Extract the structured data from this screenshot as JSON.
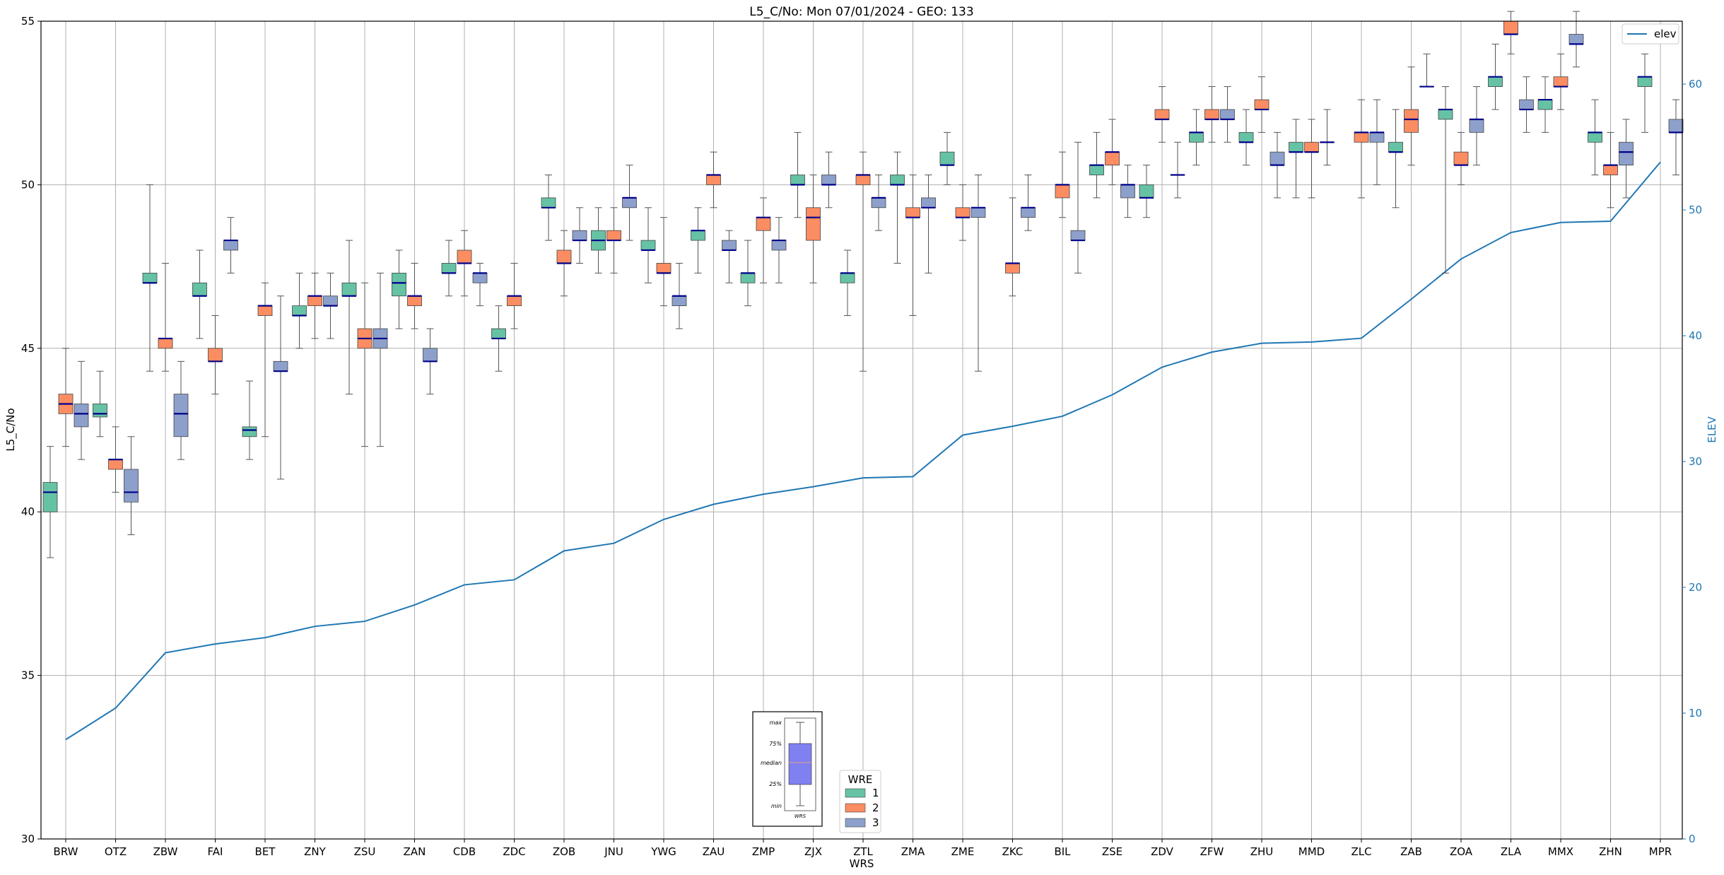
{
  "chart_data": {
    "type": "box",
    "title": "L5_C/No: Mon 07/01/2024 - GEO: 133",
    "xlabel": "WRS",
    "ylabel": "L5_C/No",
    "y2label": "ELEV",
    "ylim": [
      30,
      55
    ],
    "y2lim": [
      0,
      65
    ],
    "yticks": [
      30,
      35,
      40,
      45,
      50,
      55
    ],
    "y2ticks": [
      0,
      10,
      20,
      30,
      40,
      50,
      60
    ],
    "grid": true,
    "categories": [
      "BRW",
      "OTZ",
      "ZBW",
      "FAI",
      "BET",
      "ZNY",
      "ZSU",
      "ZAN",
      "CDB",
      "ZDC",
      "ZOB",
      "JNU",
      "YWG",
      "ZAU",
      "ZMP",
      "ZJX",
      "ZTL",
      "ZMA",
      "ZME",
      "ZKC",
      "BIL",
      "ZSE",
      "ZDV",
      "ZFW",
      "ZHU",
      "MMD",
      "ZLC",
      "ZAB",
      "ZOA",
      "ZLA",
      "MMX",
      "ZHN",
      "MPR"
    ],
    "box_legend": {
      "title": "WRE",
      "location": "lower-center",
      "entries": [
        {
          "name": "1",
          "color": "#66c2a5"
        },
        {
          "name": "2",
          "color": "#fc8d62"
        },
        {
          "name": "3",
          "color": "#8da0cb"
        }
      ]
    },
    "line_legend": {
      "name": "elev",
      "color": "#1f77b4",
      "location": "top-right"
    },
    "inset_key": {
      "labels": [
        "max",
        "75%",
        "median",
        "25%",
        "min"
      ],
      "xlabel": "WRS"
    },
    "series": [
      {
        "name": "1",
        "color": "#66c2a5",
        "boxes": [
          [
            38.6,
            40.0,
            40.6,
            40.9,
            42.0
          ],
          [
            42.3,
            42.9,
            43.0,
            43.3,
            44.3
          ],
          [
            44.3,
            47.0,
            47.0,
            47.3,
            50.0
          ],
          [
            45.3,
            46.6,
            46.6,
            47.0,
            48.0
          ],
          [
            41.6,
            42.3,
            42.5,
            42.6,
            44.0
          ],
          [
            45.0,
            46.0,
            46.0,
            46.3,
            47.3
          ],
          [
            43.6,
            46.6,
            46.6,
            47.0,
            48.3
          ],
          [
            45.6,
            46.6,
            47.0,
            47.3,
            48.0
          ],
          [
            46.6,
            47.3,
            47.3,
            47.6,
            48.3
          ],
          [
            44.3,
            45.3,
            45.3,
            45.6,
            46.3
          ],
          [
            48.3,
            49.3,
            49.3,
            49.6,
            50.3
          ],
          [
            47.3,
            48.0,
            48.3,
            48.6,
            49.3
          ],
          [
            47.0,
            48.0,
            48.0,
            48.3,
            49.3
          ],
          [
            47.3,
            48.3,
            48.6,
            48.6,
            49.3
          ],
          [
            46.3,
            47.0,
            47.3,
            47.3,
            48.3
          ],
          [
            49.0,
            50.0,
            50.0,
            50.3,
            51.6
          ],
          [
            46.0,
            47.0,
            47.3,
            47.3,
            48.0
          ],
          [
            47.6,
            50.0,
            50.0,
            50.3,
            51.0
          ],
          [
            50.0,
            50.6,
            50.6,
            51.0,
            51.6
          ],
          null,
          null,
          [
            49.6,
            50.3,
            50.6,
            50.6,
            51.6
          ],
          [
            49.0,
            49.6,
            49.6,
            50.0,
            50.6
          ],
          [
            50.6,
            51.3,
            51.6,
            51.6,
            52.3
          ],
          [
            50.6,
            51.3,
            51.3,
            51.6,
            52.3
          ],
          [
            49.6,
            51.0,
            51.0,
            51.3,
            52.0
          ],
          null,
          [
            49.3,
            51.0,
            51.0,
            51.3,
            52.3
          ],
          [
            47.3,
            52.0,
            52.3,
            52.3,
            53.0
          ],
          [
            52.3,
            53.0,
            53.3,
            53.3,
            54.3
          ],
          [
            51.6,
            52.3,
            52.6,
            52.6,
            53.3
          ],
          [
            50.3,
            51.3,
            51.6,
            51.6,
            52.6
          ],
          [
            51.6,
            53.0,
            53.3,
            53.3,
            54.0
          ]
        ]
      },
      {
        "name": "2",
        "color": "#fc8d62",
        "boxes": [
          [
            42.0,
            43.0,
            43.3,
            43.6,
            45.0
          ],
          [
            40.6,
            41.3,
            41.6,
            41.6,
            42.6
          ],
          [
            44.3,
            45.0,
            45.3,
            45.3,
            47.6
          ],
          [
            43.6,
            44.6,
            44.6,
            45.0,
            46.0
          ],
          [
            42.3,
            46.0,
            46.3,
            46.3,
            47.0
          ],
          [
            45.3,
            46.3,
            46.6,
            46.6,
            47.3
          ],
          [
            42.0,
            45.0,
            45.3,
            45.6,
            47.0
          ],
          [
            45.6,
            46.3,
            46.6,
            46.6,
            47.6
          ],
          [
            46.6,
            47.6,
            47.6,
            48.0,
            48.6
          ],
          [
            45.6,
            46.3,
            46.6,
            46.6,
            47.6
          ],
          [
            46.6,
            47.6,
            47.6,
            48.0,
            48.6
          ],
          [
            47.3,
            48.3,
            48.3,
            48.6,
            49.3
          ],
          [
            46.3,
            47.3,
            47.3,
            47.6,
            49.0
          ],
          [
            49.3,
            50.0,
            50.3,
            50.3,
            51.0
          ],
          [
            47.0,
            48.6,
            49.0,
            49.0,
            49.6
          ],
          [
            47.0,
            48.3,
            49.0,
            49.3,
            50.3
          ],
          [
            44.3,
            50.0,
            50.3,
            50.3,
            51.0
          ],
          [
            46.0,
            49.0,
            49.0,
            49.3,
            50.3
          ],
          [
            48.3,
            49.0,
            49.0,
            49.3,
            50.0
          ],
          [
            46.6,
            47.3,
            47.6,
            47.6,
            49.6
          ],
          [
            49.0,
            49.6,
            50.0,
            50.0,
            51.0
          ],
          [
            50.0,
            50.6,
            51.0,
            51.0,
            52.0
          ],
          [
            51.3,
            52.0,
            52.0,
            52.3,
            53.0
          ],
          [
            51.3,
            52.0,
            52.0,
            52.3,
            53.0
          ],
          [
            51.6,
            52.3,
            52.3,
            52.6,
            53.3
          ],
          [
            49.6,
            51.0,
            51.0,
            51.3,
            52.0
          ],
          [
            49.6,
            51.3,
            51.6,
            51.6,
            52.6
          ],
          [
            50.6,
            51.6,
            52.0,
            52.3,
            53.6
          ],
          [
            50.0,
            50.6,
            50.6,
            51.0,
            51.6
          ],
          [
            54.0,
            54.6,
            54.6,
            55.0,
            55.3
          ],
          [
            52.3,
            53.0,
            53.0,
            53.3,
            54.0
          ],
          [
            49.3,
            50.3,
            50.6,
            50.6,
            51.6
          ],
          null
        ]
      },
      {
        "name": "3",
        "color": "#8da0cb",
        "boxes": [
          [
            41.6,
            42.6,
            43.0,
            43.3,
            44.6
          ],
          [
            39.3,
            40.3,
            40.6,
            41.3,
            42.3
          ],
          [
            41.6,
            42.3,
            43.0,
            43.6,
            44.6
          ],
          [
            47.3,
            48.0,
            48.3,
            48.3,
            49.0
          ],
          [
            41.0,
            44.3,
            44.3,
            44.6,
            46.6
          ],
          [
            45.3,
            46.3,
            46.3,
            46.6,
            47.3
          ],
          [
            42.0,
            45.0,
            45.3,
            45.6,
            47.3
          ],
          [
            43.6,
            44.6,
            44.6,
            45.0,
            45.6
          ],
          [
            46.3,
            47.0,
            47.3,
            47.3,
            47.6
          ],
          null,
          [
            47.6,
            48.3,
            48.3,
            48.6,
            49.3
          ],
          [
            48.3,
            49.3,
            49.6,
            49.6,
            50.6
          ],
          [
            45.6,
            46.3,
            46.6,
            46.6,
            47.6
          ],
          [
            47.0,
            48.0,
            48.0,
            48.3,
            48.6
          ],
          [
            47.0,
            48.0,
            48.3,
            48.3,
            49.0
          ],
          [
            49.3,
            50.0,
            50.0,
            50.3,
            51.0
          ],
          [
            48.6,
            49.3,
            49.6,
            49.6,
            50.3
          ],
          [
            47.3,
            49.3,
            49.3,
            49.6,
            50.3
          ],
          [
            44.3,
            49.0,
            49.3,
            49.3,
            50.3
          ],
          [
            48.6,
            49.0,
            49.3,
            49.3,
            50.3
          ],
          [
            47.3,
            48.3,
            48.3,
            48.6,
            51.3
          ],
          [
            49.0,
            49.6,
            50.0,
            50.0,
            50.6
          ],
          [
            49.6,
            50.3,
            50.3,
            50.3,
            51.3
          ],
          [
            51.3,
            52.0,
            52.0,
            52.3,
            53.0
          ],
          [
            49.6,
            50.6,
            50.6,
            51.0,
            51.6
          ],
          [
            50.6,
            51.3,
            51.3,
            51.3,
            52.3
          ],
          [
            50.0,
            51.3,
            51.6,
            51.6,
            52.6
          ],
          [
            53.0,
            53.0,
            53.0,
            53.0,
            54.0
          ],
          [
            50.6,
            51.6,
            52.0,
            52.0,
            53.0
          ],
          [
            51.6,
            52.3,
            52.3,
            52.6,
            53.3
          ],
          [
            53.6,
            54.3,
            54.3,
            54.6,
            55.3
          ],
          [
            49.6,
            50.6,
            51.0,
            51.3,
            52.0
          ],
          [
            50.3,
            51.6,
            51.6,
            52.0,
            52.6
          ]
        ]
      }
    ],
    "line_series": {
      "name": "elev",
      "axis": "right",
      "values": [
        7.9,
        10.4,
        14.8,
        15.5,
        16.0,
        16.9,
        17.3,
        18.6,
        20.2,
        20.6,
        22.9,
        23.5,
        25.4,
        26.6,
        27.4,
        28.0,
        28.7,
        28.8,
        32.1,
        32.8,
        33.6,
        35.3,
        37.5,
        38.7,
        39.4,
        39.5,
        39.8,
        42.9,
        46.1,
        48.2,
        49.0,
        49.1,
        53.8
      ]
    }
  }
}
